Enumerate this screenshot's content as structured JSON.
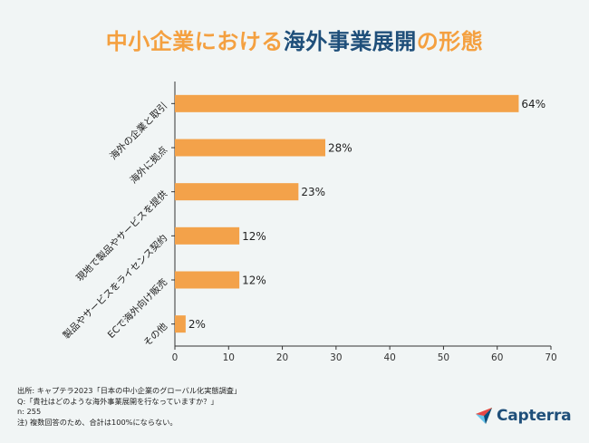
{
  "title": {
    "part1": "中小企業における",
    "part2": "海外事業展開",
    "part3": "の形態"
  },
  "chart_data": {
    "type": "bar",
    "orientation": "horizontal",
    "categories": [
      "海外の企業と取引",
      "海外に拠点",
      "現地で製品やサービスを提供",
      "製品やサービスをライセンス契約",
      "ECで海外向け販売",
      "その他"
    ],
    "values": [
      64,
      28,
      23,
      12,
      12,
      2
    ],
    "value_labels": [
      "64%",
      "28%",
      "23%",
      "12%",
      "12%",
      "2%"
    ],
    "xticks": [
      "0",
      "10",
      "20",
      "30",
      "40",
      "50",
      "60",
      "70"
    ],
    "xlim": [
      0,
      70
    ],
    "bar_color": "#f3a24a",
    "grid": false
  },
  "footnote": {
    "source": "出所: キャプテラ2023「日本の中小企業のグローバル化実態調査」",
    "question": "Q:「貴社はどのような海外事業展開を行なっていますか？」",
    "n": "n: 255",
    "note": "注) 複数回答のため、合計は100%にならない。"
  },
  "logo": {
    "text": "Capterra",
    "icon": "capterra-arrow-icon"
  }
}
